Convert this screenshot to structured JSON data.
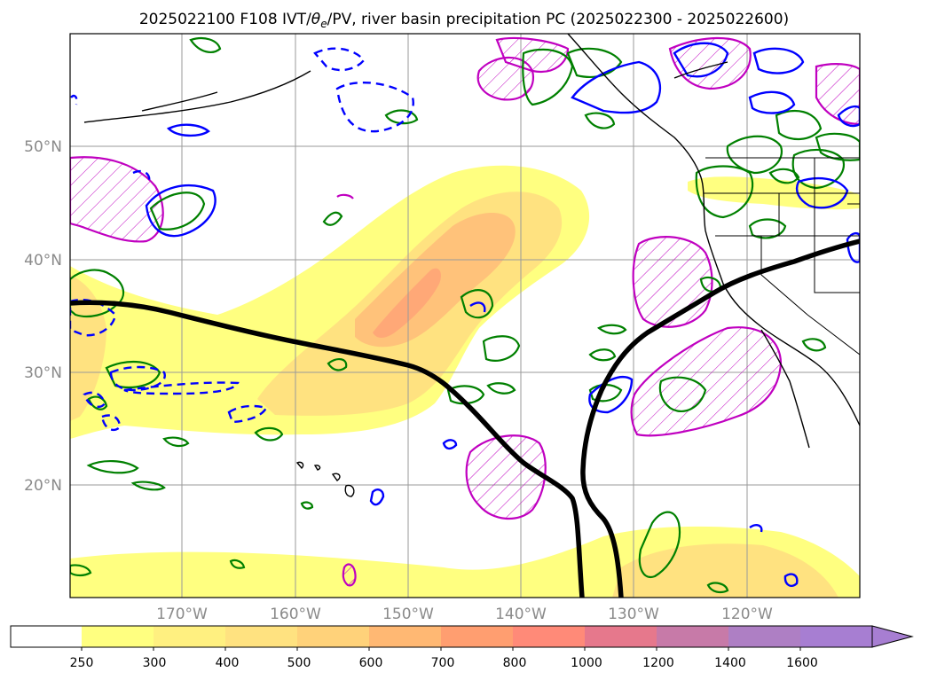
{
  "title": "2025022100 F108 IVT/",
  "title_theta": "θ",
  "title_sub": "e",
  "title_rest": "/PV, river basin precipitation PC (2025022300 - 2025022600)",
  "map": {
    "lat_labels": [
      "50°N",
      "40°N",
      "30°N",
      "20°N"
    ],
    "lon_labels": [
      "170°W",
      "160°W",
      "150°W",
      "140°W",
      "130°W",
      "120°W"
    ],
    "lon_range": [
      -180,
      -110
    ],
    "lat_range": [
      10,
      60
    ],
    "grid": true
  },
  "colorbar": {
    "ticks": [
      "250",
      "300",
      "400",
      "500",
      "600",
      "700",
      "800",
      "1000",
      "1200",
      "1400",
      "1600"
    ],
    "colors": [
      "#ffffff",
      "#ffff80",
      "#fff080",
      "#ffe280",
      "#ffd27a",
      "#ffb873",
      "#ff9e70",
      "#ff8a78",
      "#e6788c",
      "#c77aa8",
      "#ae7fc4",
      "#a77ed2"
    ],
    "extend": "max"
  },
  "colors": {
    "ivt_light": "#ffff80",
    "ivt_mid": "#ffe280",
    "ivt_core": "#ffc27a",
    "ivt_peak": "#ffa877",
    "pv_line": "#000000",
    "theta_blue": "#0000ff",
    "precip_green": "#008000",
    "pc_magenta": "#c000c0",
    "coastline": "#000000",
    "gridline": "#9a9a9a"
  }
}
